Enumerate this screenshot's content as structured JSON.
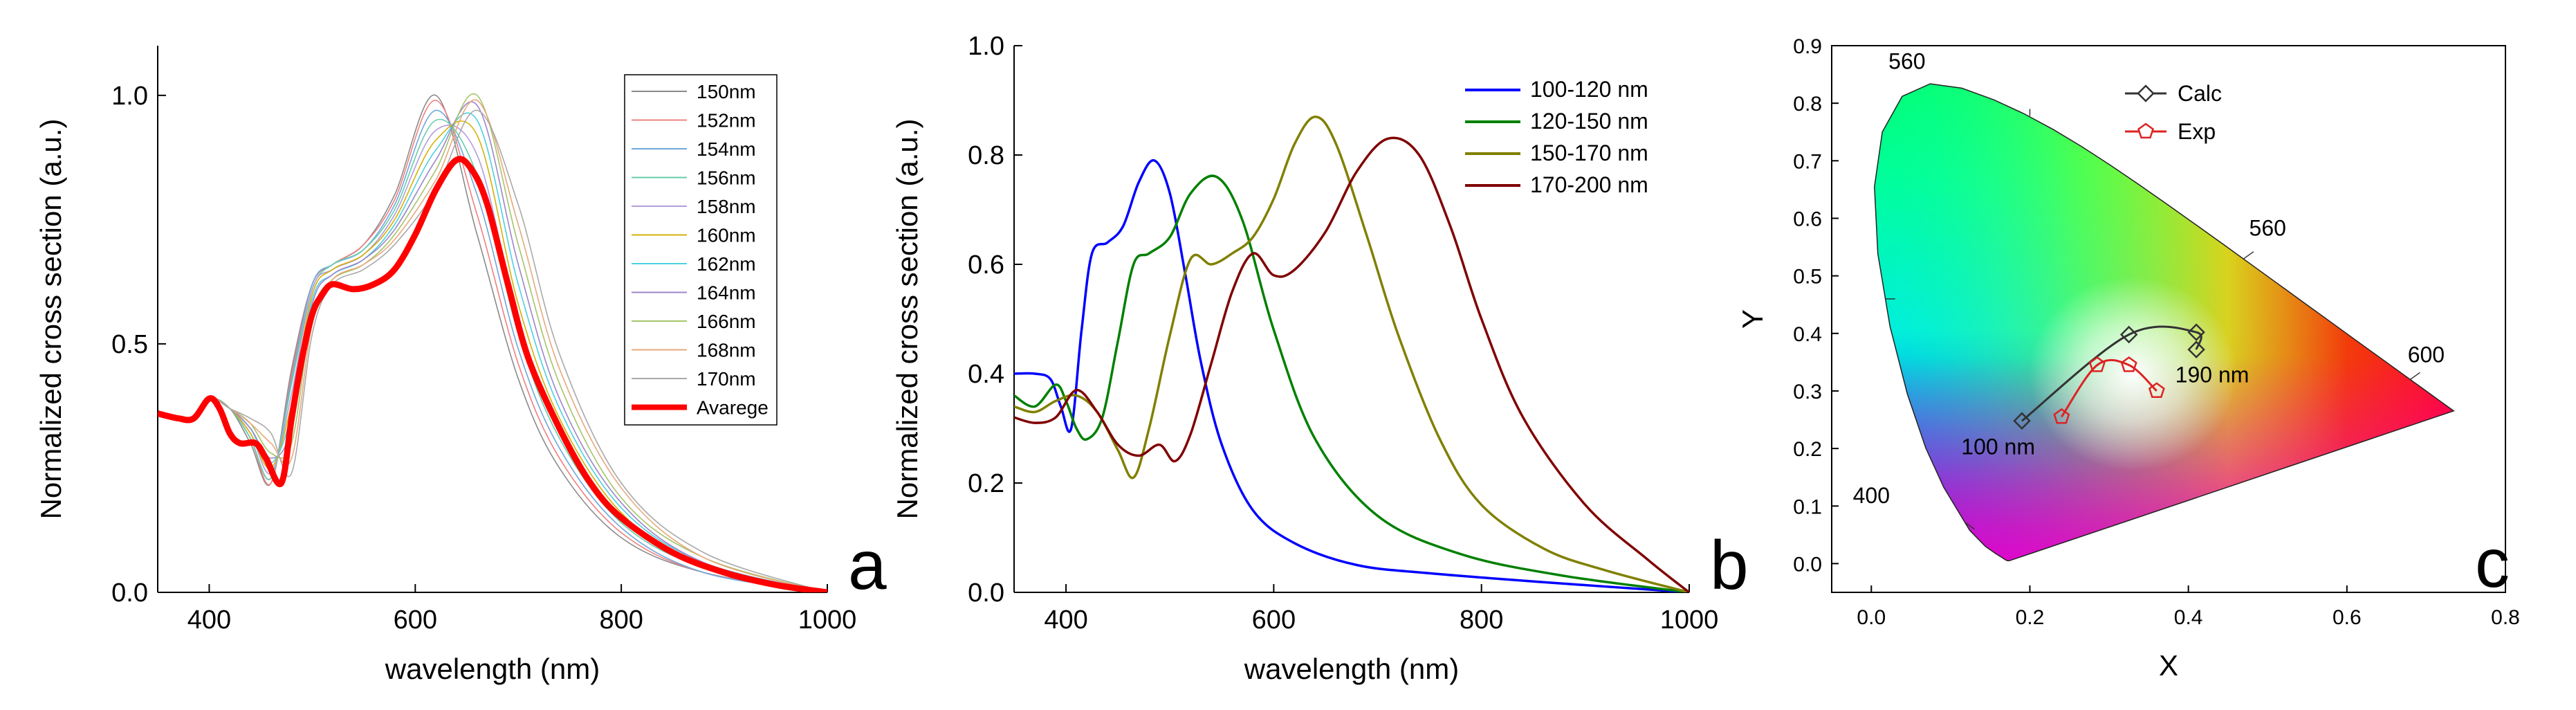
{
  "chart_data": [
    {
      "type": "line",
      "panel_label": "a",
      "xlabel": "wavelength (nm)",
      "ylabel": "Normalized cross section (a.u.)",
      "xlim": [
        350,
        1000
      ],
      "ylim": [
        0,
        1.1
      ],
      "xticks": [
        "400",
        "600",
        "800",
        "1000"
      ],
      "yticks": [
        "0.0",
        "0.5",
        "1.0"
      ],
      "legend_position": "top-right",
      "series": [
        {
          "name": "150nm",
          "color": "#8a8a8a",
          "x": [
            350,
            380,
            400,
            420,
            440,
            460,
            480,
            500,
            520,
            550,
            580,
            620,
            660,
            700,
            740,
            800,
            880,
            1000
          ],
          "y": [
            0.36,
            0.35,
            0.39,
            0.37,
            0.3,
            0.22,
            0.45,
            0.62,
            0.66,
            0.7,
            0.8,
            1.0,
            0.72,
            0.43,
            0.25,
            0.11,
            0.04,
            0.0
          ]
        },
        {
          "name": "152nm",
          "color": "#f08080",
          "x": [
            350,
            380,
            400,
            420,
            440,
            460,
            480,
            500,
            520,
            550,
            580,
            620,
            660,
            700,
            740,
            800,
            880,
            1000
          ],
          "y": [
            0.36,
            0.35,
            0.39,
            0.37,
            0.31,
            0.22,
            0.44,
            0.62,
            0.66,
            0.7,
            0.79,
            0.99,
            0.76,
            0.46,
            0.27,
            0.12,
            0.04,
            0.0
          ]
        },
        {
          "name": "154nm",
          "color": "#6fa8dc",
          "x": [
            350,
            380,
            400,
            420,
            440,
            460,
            480,
            500,
            520,
            550,
            580,
            620,
            660,
            700,
            740,
            800,
            880,
            1000
          ],
          "y": [
            0.36,
            0.35,
            0.39,
            0.37,
            0.31,
            0.23,
            0.43,
            0.62,
            0.66,
            0.69,
            0.78,
            0.97,
            0.8,
            0.49,
            0.29,
            0.13,
            0.04,
            0.0
          ]
        },
        {
          "name": "156nm",
          "color": "#66cdaa",
          "x": [
            350,
            380,
            400,
            420,
            440,
            460,
            480,
            500,
            520,
            550,
            580,
            620,
            660,
            700,
            740,
            800,
            880,
            1000
          ],
          "y": [
            0.36,
            0.35,
            0.39,
            0.37,
            0.31,
            0.23,
            0.42,
            0.61,
            0.66,
            0.69,
            0.77,
            0.95,
            0.84,
            0.52,
            0.31,
            0.14,
            0.05,
            0.0
          ]
        },
        {
          "name": "158nm",
          "color": "#b39ddb",
          "x": [
            350,
            380,
            400,
            420,
            440,
            460,
            480,
            500,
            520,
            550,
            580,
            620,
            660,
            700,
            740,
            800,
            880,
            1000
          ],
          "y": [
            0.36,
            0.35,
            0.39,
            0.37,
            0.32,
            0.24,
            0.4,
            0.61,
            0.65,
            0.68,
            0.76,
            0.93,
            0.88,
            0.55,
            0.33,
            0.15,
            0.05,
            0.0
          ]
        },
        {
          "name": "160nm",
          "color": "#d4b106",
          "x": [
            350,
            380,
            400,
            420,
            440,
            460,
            480,
            500,
            520,
            550,
            580,
            620,
            660,
            700,
            740,
            800,
            880,
            1000
          ],
          "y": [
            0.36,
            0.35,
            0.39,
            0.37,
            0.32,
            0.25,
            0.38,
            0.6,
            0.65,
            0.68,
            0.75,
            0.91,
            0.92,
            0.58,
            0.35,
            0.16,
            0.05,
            0.0
          ]
        },
        {
          "name": "162nm",
          "color": "#4dd0e1",
          "x": [
            350,
            380,
            400,
            420,
            440,
            460,
            480,
            500,
            520,
            550,
            580,
            620,
            660,
            700,
            740,
            800,
            880,
            1000
          ],
          "y": [
            0.36,
            0.35,
            0.39,
            0.37,
            0.33,
            0.26,
            0.36,
            0.59,
            0.64,
            0.67,
            0.74,
            0.89,
            0.95,
            0.62,
            0.37,
            0.17,
            0.06,
            0.0
          ]
        },
        {
          "name": "164nm",
          "color": "#9e86c8",
          "x": [
            350,
            380,
            400,
            420,
            440,
            460,
            480,
            500,
            520,
            550,
            580,
            620,
            660,
            700,
            740,
            800,
            880,
            1000
          ],
          "y": [
            0.36,
            0.35,
            0.39,
            0.37,
            0.33,
            0.27,
            0.33,
            0.58,
            0.64,
            0.67,
            0.73,
            0.87,
            0.98,
            0.66,
            0.39,
            0.18,
            0.06,
            0.0
          ]
        },
        {
          "name": "166nm",
          "color": "#a5c46a",
          "x": [
            350,
            380,
            400,
            420,
            440,
            460,
            480,
            500,
            520,
            550,
            580,
            620,
            660,
            700,
            740,
            800,
            880,
            1000
          ],
          "y": [
            0.36,
            0.35,
            0.39,
            0.37,
            0.34,
            0.28,
            0.3,
            0.56,
            0.63,
            0.66,
            0.72,
            0.85,
            1.0,
            0.7,
            0.42,
            0.19,
            0.07,
            0.0
          ]
        },
        {
          "name": "168nm",
          "color": "#e8a87c",
          "x": [
            350,
            380,
            400,
            420,
            440,
            460,
            480,
            500,
            520,
            550,
            580,
            620,
            660,
            700,
            740,
            800,
            880,
            1000
          ],
          "y": [
            0.36,
            0.35,
            0.39,
            0.37,
            0.34,
            0.3,
            0.27,
            0.54,
            0.63,
            0.66,
            0.71,
            0.83,
            0.99,
            0.74,
            0.45,
            0.21,
            0.07,
            0.0
          ]
        },
        {
          "name": "170nm",
          "color": "#a9a9a9",
          "x": [
            350,
            380,
            400,
            420,
            440,
            460,
            480,
            500,
            520,
            550,
            580,
            620,
            660,
            700,
            740,
            800,
            880,
            1000
          ],
          "y": [
            0.36,
            0.35,
            0.39,
            0.37,
            0.35,
            0.32,
            0.24,
            0.52,
            0.62,
            0.65,
            0.7,
            0.81,
            0.97,
            0.78,
            0.48,
            0.22,
            0.08,
            0.0
          ]
        },
        {
          "name": "Avarege",
          "color": "#ff0000",
          "bold": true,
          "x": [
            350,
            370,
            385,
            400,
            410,
            420,
            430,
            445,
            455,
            470,
            480,
            490,
            500,
            510,
            520,
            540,
            560,
            580,
            600,
            620,
            640,
            655,
            670,
            690,
            710,
            740,
            770,
            800,
            850,
            900,
            950,
            1000
          ],
          "y": [
            0.36,
            0.35,
            0.35,
            0.39,
            0.37,
            0.32,
            0.3,
            0.3,
            0.27,
            0.22,
            0.35,
            0.47,
            0.56,
            0.6,
            0.62,
            0.61,
            0.62,
            0.65,
            0.72,
            0.81,
            0.87,
            0.85,
            0.78,
            0.62,
            0.47,
            0.33,
            0.22,
            0.15,
            0.08,
            0.04,
            0.015,
            0.0
          ]
        }
      ]
    },
    {
      "type": "line",
      "panel_label": "b",
      "xlabel": "wavelength (nm)",
      "ylabel": "Normalized cross section (a.u.)",
      "xlim": [
        350,
        1000
      ],
      "ylim": [
        0,
        1.0
      ],
      "xticks": [
        "400",
        "600",
        "800",
        "1000"
      ],
      "yticks": [
        "0.0",
        "0.2",
        "0.4",
        "0.6",
        "0.8",
        "1.0"
      ],
      "legend_position": "top-right",
      "series": [
        {
          "name": "100-120 nm",
          "color": "#0000ff",
          "x": [
            350,
            370,
            385,
            395,
            405,
            415,
            425,
            440,
            455,
            470,
            485,
            500,
            515,
            530,
            550,
            580,
            620,
            680,
            750,
            850,
            1000
          ],
          "y": [
            0.4,
            0.4,
            0.39,
            0.34,
            0.3,
            0.48,
            0.62,
            0.64,
            0.67,
            0.75,
            0.79,
            0.73,
            0.58,
            0.42,
            0.27,
            0.15,
            0.09,
            0.05,
            0.035,
            0.02,
            0.0
          ]
        },
        {
          "name": "120-150 nm",
          "color": "#008000",
          "x": [
            350,
            370,
            390,
            400,
            410,
            420,
            435,
            450,
            465,
            480,
            500,
            520,
            545,
            570,
            600,
            640,
            700,
            780,
            880,
            1000
          ],
          "y": [
            0.36,
            0.34,
            0.38,
            0.35,
            0.3,
            0.28,
            0.32,
            0.46,
            0.6,
            0.62,
            0.65,
            0.73,
            0.76,
            0.68,
            0.48,
            0.28,
            0.14,
            0.07,
            0.03,
            0.0
          ]
        },
        {
          "name": "150-170 nm",
          "color": "#808000",
          "x": [
            350,
            370,
            390,
            410,
            430,
            450,
            465,
            480,
            500,
            520,
            540,
            560,
            580,
            600,
            620,
            640,
            660,
            690,
            720,
            760,
            800,
            860,
            920,
            1000
          ],
          "y": [
            0.34,
            0.33,
            0.35,
            0.36,
            0.33,
            0.26,
            0.21,
            0.3,
            0.47,
            0.61,
            0.6,
            0.62,
            0.65,
            0.72,
            0.82,
            0.87,
            0.82,
            0.65,
            0.47,
            0.28,
            0.16,
            0.08,
            0.04,
            0.0
          ]
        },
        {
          "name": "170-200 nm",
          "color": "#800000",
          "x": [
            350,
            370,
            390,
            410,
            430,
            450,
            470,
            490,
            505,
            520,
            540,
            560,
            580,
            600,
            620,
            650,
            680,
            710,
            740,
            770,
            800,
            840,
            900,
            960,
            1000
          ],
          "y": [
            0.32,
            0.31,
            0.32,
            0.37,
            0.33,
            0.27,
            0.25,
            0.27,
            0.24,
            0.29,
            0.42,
            0.55,
            0.62,
            0.58,
            0.59,
            0.66,
            0.77,
            0.83,
            0.8,
            0.67,
            0.5,
            0.32,
            0.16,
            0.06,
            0.0
          ]
        }
      ]
    },
    {
      "type": "scatter",
      "panel_label": "c",
      "xlabel": "X",
      "ylabel": "Y",
      "xlim": [
        -0.05,
        0.8
      ],
      "ylim": [
        -0.05,
        0.9
      ],
      "xticks": [
        "0.0",
        "0.2",
        "0.4",
        "0.6",
        "0.8"
      ],
      "yticks": [
        "0.0",
        "0.1",
        "0.2",
        "0.3",
        "0.4",
        "0.5",
        "0.6",
        "0.7",
        "0.8",
        "0.9"
      ],
      "legend_position": "top-center",
      "locus_labels": [
        "560",
        "560",
        "600",
        "400"
      ],
      "annotations": [
        "190 nm",
        "100 nm"
      ],
      "series": [
        {
          "name": "Calc",
          "color": "#333333",
          "marker": "diamond",
          "x": [
            0.19,
            0.325,
            0.41,
            0.41
          ],
          "y": [
            0.248,
            0.398,
            0.402,
            0.372
          ]
        },
        {
          "name": "Exp",
          "color": "#dd2222",
          "marker": "pentagon",
          "x": [
            0.24,
            0.285,
            0.325,
            0.36
          ],
          "y": [
            0.255,
            0.345,
            0.345,
            0.3
          ]
        }
      ]
    }
  ]
}
